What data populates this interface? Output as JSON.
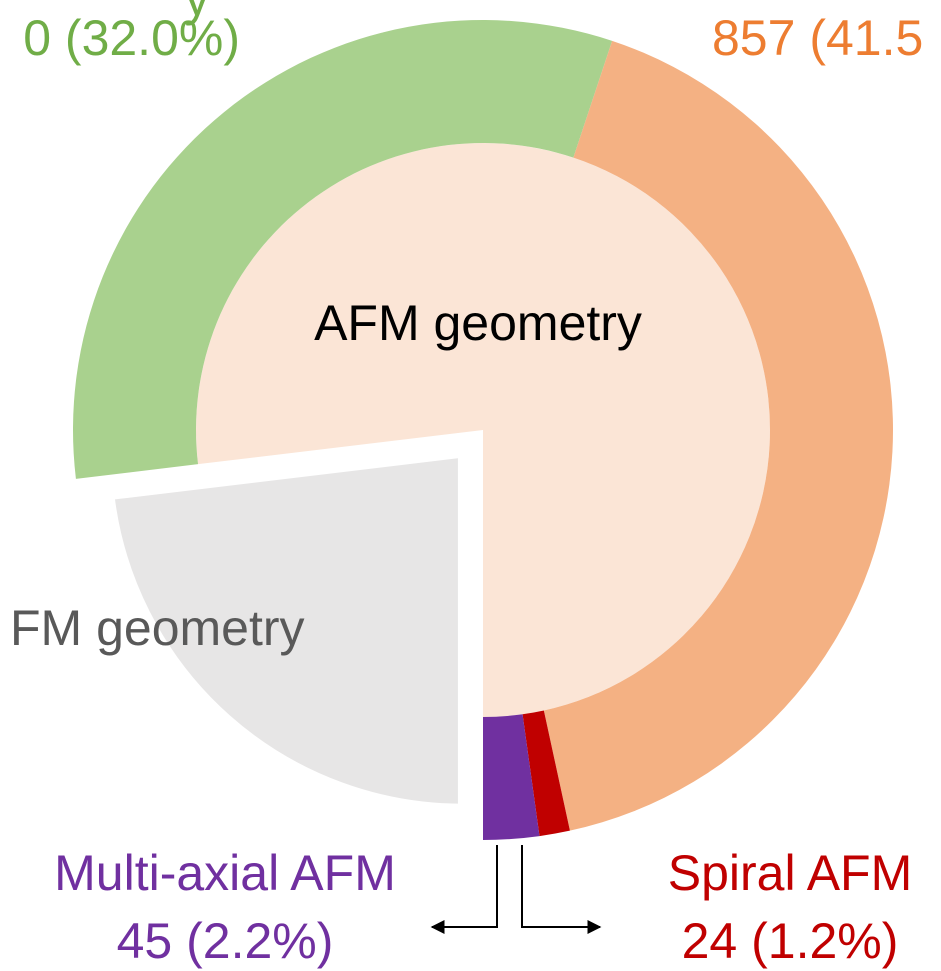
{
  "chart_data": {
    "type": "donut",
    "inner": [
      {
        "name": "FM geometry",
        "value": 23.1,
        "color": "#e7e6e6",
        "label_color": "#595959",
        "exploded": true
      },
      {
        "name": "AFM geometry",
        "value": 76.9,
        "color": "#fbe5d6",
        "label_color": "#000000",
        "exploded": false
      }
    ],
    "outer": [
      {
        "name": "y",
        "value": 32.0,
        "value_label": "0 (32.0%)",
        "color": "#a9d18e",
        "label_color": "#70ad47"
      },
      {
        "name": null,
        "value": 41.5,
        "value_label": "857 (41.5",
        "color": "#f4b183",
        "label_color": "#ed7d31"
      },
      {
        "name": "Spiral AFM",
        "value": 1.2,
        "value_label": "24 (1.2%)",
        "color": "#c00000",
        "label_color": "#c00000"
      },
      {
        "name": "Multi-axial AFM",
        "value": 2.2,
        "value_label": "45 (2.2%)",
        "color": "#7030a0",
        "label_color": "#7030a0"
      }
    ]
  }
}
